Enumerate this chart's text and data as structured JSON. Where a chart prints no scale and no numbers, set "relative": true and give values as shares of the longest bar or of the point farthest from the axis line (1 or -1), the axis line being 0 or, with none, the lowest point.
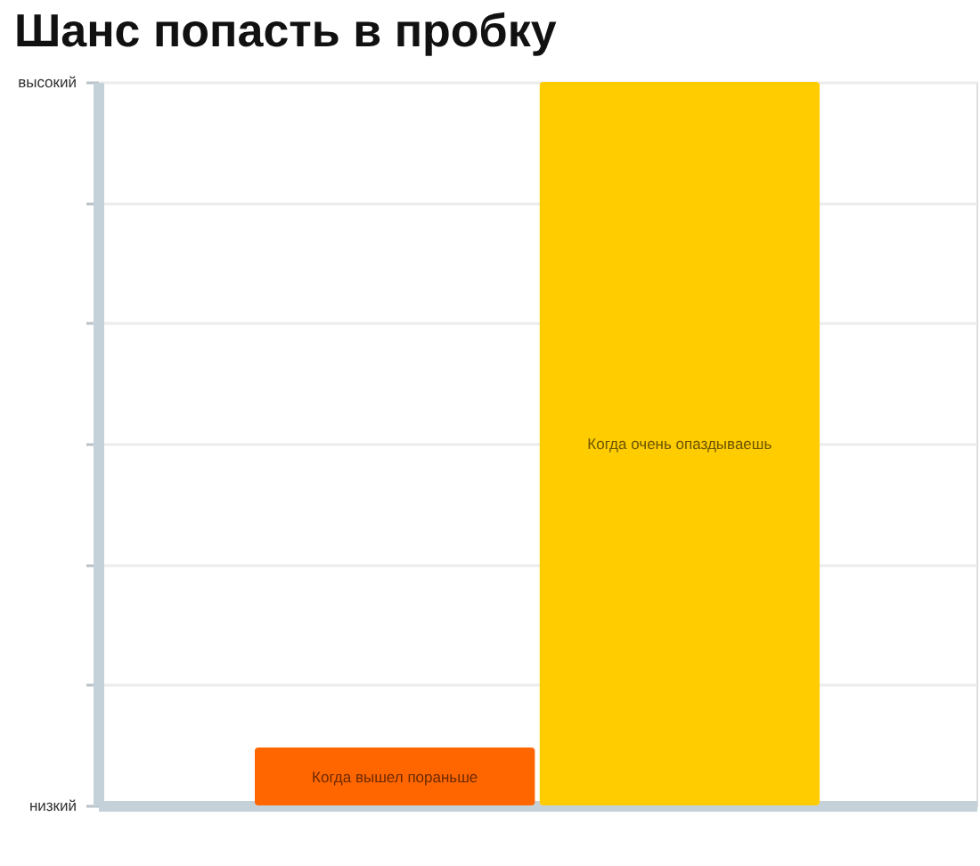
{
  "chart_data": {
    "type": "bar",
    "title": "Шанс попасть в пробку",
    "categories": [
      "Когда вышел пораньше",
      "Когда очень опаздываешь"
    ],
    "values": [
      0.08,
      1
    ],
    "colors": [
      "#ff6600",
      "#ffcc00"
    ],
    "relative": true,
    "annotations": [
      "высокий",
      "низкий"
    ],
    "grid": "y",
    "tick_labels": false
  }
}
